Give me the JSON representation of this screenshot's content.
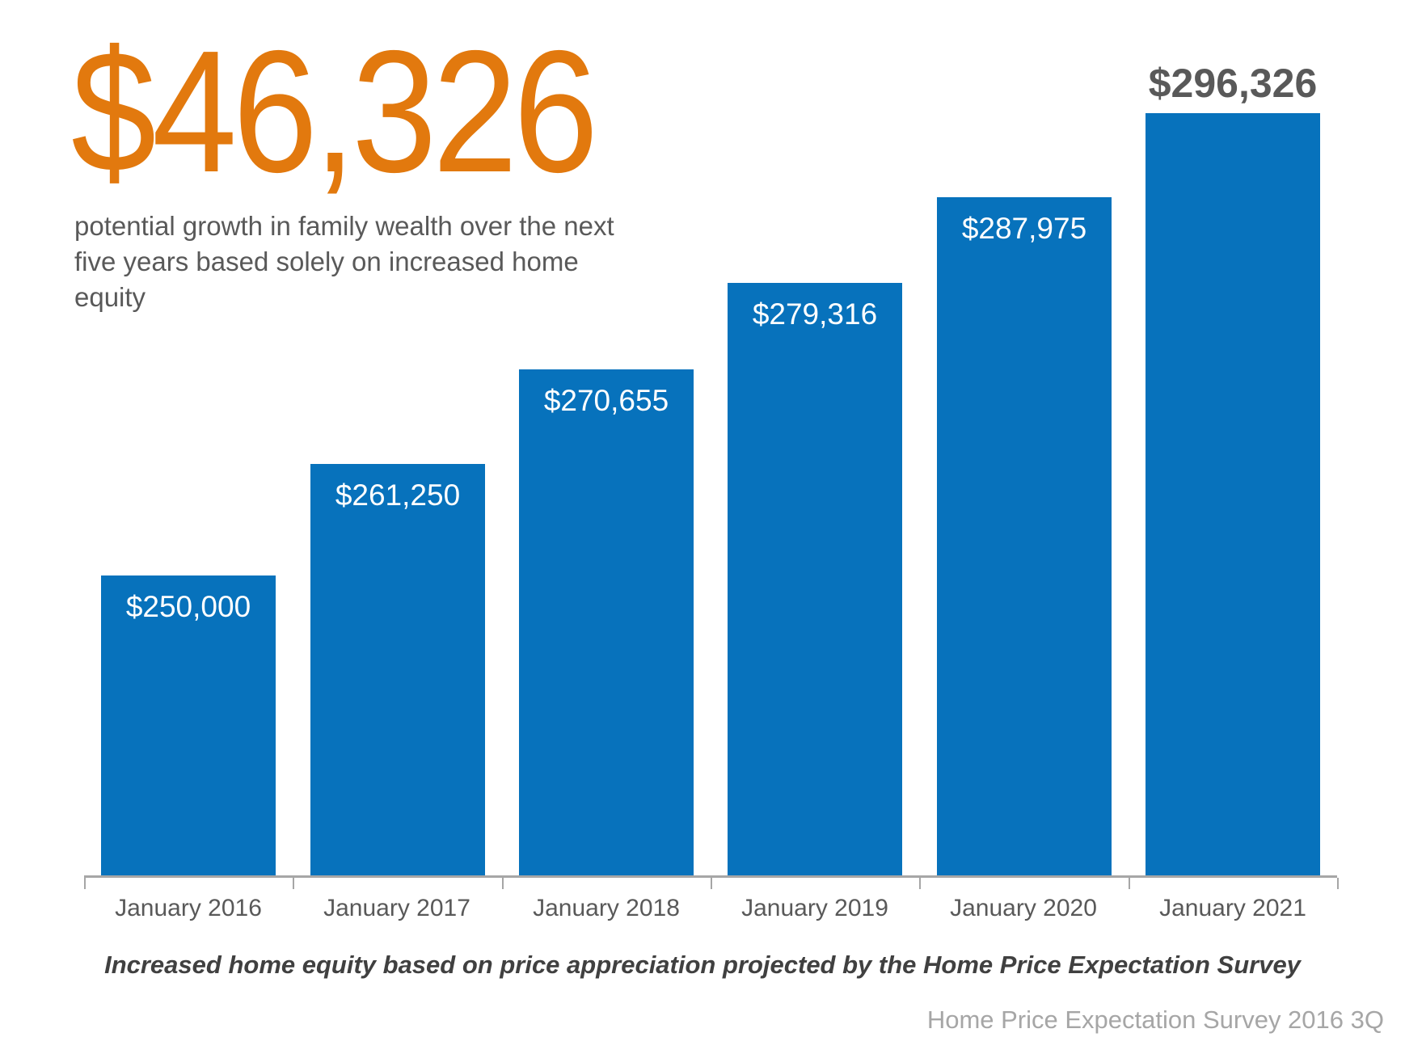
{
  "headline": {
    "amount": "$46,326",
    "subtitle": "potential growth in family wealth over the next five years based solely on increased home equity"
  },
  "chart_data": {
    "type": "bar",
    "categories": [
      "January 2016",
      "January 2017",
      "January 2018",
      "January 2019",
      "January 2020",
      "January 2021"
    ],
    "values": [
      250000,
      261250,
      270655,
      279316,
      287975,
      296326
    ],
    "value_labels": [
      "$250,000",
      "$261,250",
      "$270,655",
      "$279,316",
      "$287,975",
      "$296,326"
    ],
    "title": "",
    "xlabel": "",
    "ylabel": "",
    "ylim": [
      220000,
      300000
    ],
    "grid": false,
    "legend": "none",
    "outside_label_index": 5,
    "bar_color": "#0772BC",
    "inside_label_color": "#FFFFFF",
    "outside_label_color": "#595959",
    "axis_line_color": "#A6A6A6",
    "x_label_color": "#595959"
  },
  "caption": "Increased home equity based on price appreciation projected by the Home Price Expectation Survey",
  "footer": "Home Price Expectation Survey 2016 3Q",
  "colors": {
    "accent_orange": "#E2790E",
    "text_gray": "#595959",
    "caption_gray": "#404040",
    "footer_gray": "#A6A6A6"
  }
}
